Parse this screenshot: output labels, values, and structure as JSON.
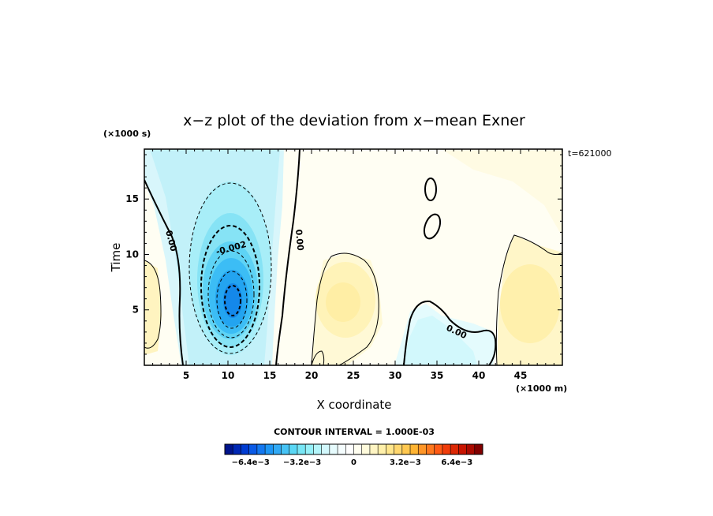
{
  "chart_data": {
    "type": "heatmap",
    "title": "x−z plot of the deviation from x−mean Exner",
    "xlabel": "X coordinate",
    "ylabel": "Time",
    "x_unit": "(×1000 m)",
    "y_unit": "(×1000 s)",
    "time_label": "t=621000",
    "xlim": [
      0,
      50
    ],
    "ylim": [
      0,
      19.5
    ],
    "x_ticks": [
      5,
      10,
      15,
      20,
      25,
      30,
      35,
      40,
      45
    ],
    "y_ticks": [
      5,
      10,
      15
    ],
    "contour_interval_text": "CONTOUR INTERVAL = 1.000E-03",
    "contour_labels": [
      "0.00",
      "0.00",
      "-0.002",
      "0.00"
    ],
    "colorbar": {
      "tick_labels": [
        "−6.4e−3",
        "−3.2e−3",
        "0",
        "3.2e−3",
        "6.4e−3"
      ],
      "colors": [
        "#00148c",
        "#0028b4",
        "#003cd2",
        "#0a5ae6",
        "#1478f0",
        "#1e96f5",
        "#32aaf5",
        "#46c3f5",
        "#5ad7f5",
        "#78e6f5",
        "#96f0f8",
        "#b4f5fa",
        "#d2f8fc",
        "#e6fbfd",
        "#f5fdfe",
        "#fefefe",
        "#fffef0",
        "#fffbdc",
        "#fff5c3",
        "#fff0aa",
        "#ffe68c",
        "#ffd76e",
        "#ffc850",
        "#ffb432",
        "#ff9628",
        "#ff781e",
        "#ff5a14",
        "#f03c0a",
        "#dc2805",
        "#c81400",
        "#aa0a00",
        "#820000"
      ]
    },
    "features": [
      {
        "kind": "low",
        "x": 10.5,
        "y": 6.0,
        "value": -0.006
      },
      {
        "kind": "low",
        "x": 34.0,
        "y": 2.0,
        "value": -0.001
      },
      {
        "kind": "high",
        "x": 24.0,
        "y": 6.0,
        "value": 0.0025
      },
      {
        "kind": "high",
        "x": 47.0,
        "y": 6.0,
        "value": 0.002
      }
    ]
  }
}
